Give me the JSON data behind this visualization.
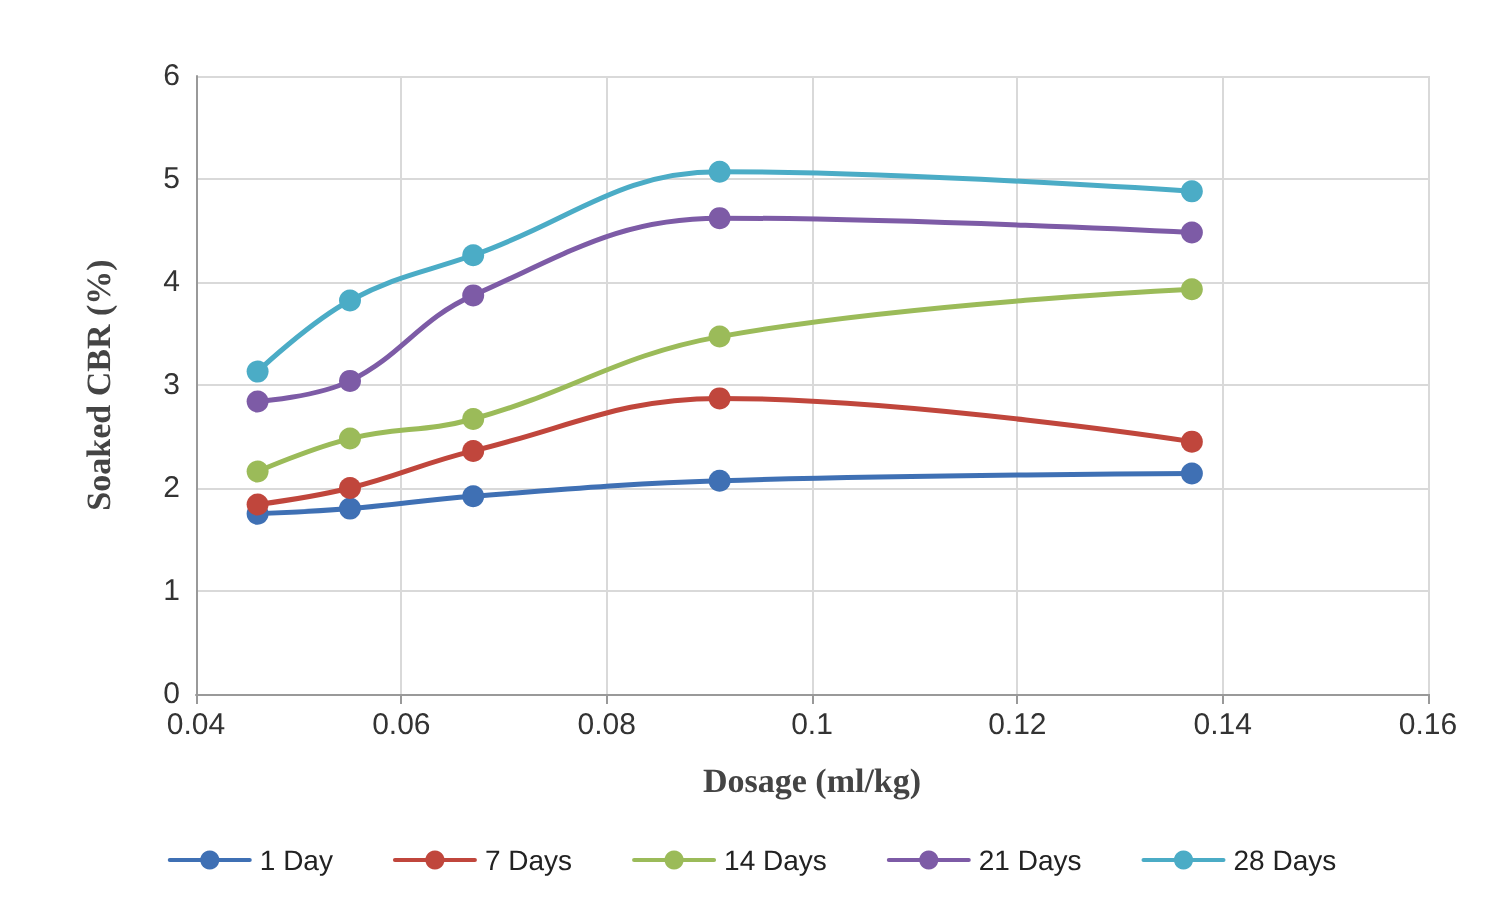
{
  "chart_data": {
    "type": "line",
    "xlabel": "Dosage (ml/kg)",
    "ylabel": "Soaked CBR (%)",
    "x": [
      0.046,
      0.055,
      0.067,
      0.091,
      0.137
    ],
    "series": [
      {
        "name": "1 Day",
        "color": "#3f70b4",
        "values": [
          1.75,
          1.8,
          1.92,
          2.07,
          2.14
        ]
      },
      {
        "name": "7 Days",
        "color": "#c0463c",
        "values": [
          1.84,
          2.0,
          2.36,
          2.87,
          2.45
        ]
      },
      {
        "name": "14 Days",
        "color": "#9bbb59",
        "values": [
          2.16,
          2.48,
          2.67,
          3.47,
          3.93
        ]
      },
      {
        "name": "21 Days",
        "color": "#7d5ba6",
        "values": [
          2.84,
          3.04,
          3.87,
          4.62,
          4.48
        ]
      },
      {
        "name": "28 Days",
        "color": "#4bacc6",
        "values": [
          3.13,
          3.82,
          4.26,
          5.07,
          4.88
        ]
      }
    ],
    "xlim": [
      0.04,
      0.16
    ],
    "xticks": [
      0.04,
      0.06,
      0.08,
      0.1,
      0.12,
      0.14,
      0.16
    ],
    "ylim": [
      0,
      6
    ],
    "yticks": [
      0,
      1,
      2,
      3,
      4,
      5,
      6
    ],
    "grid": true,
    "legend": "bottom",
    "marker": "circle",
    "line_style": "solid"
  }
}
